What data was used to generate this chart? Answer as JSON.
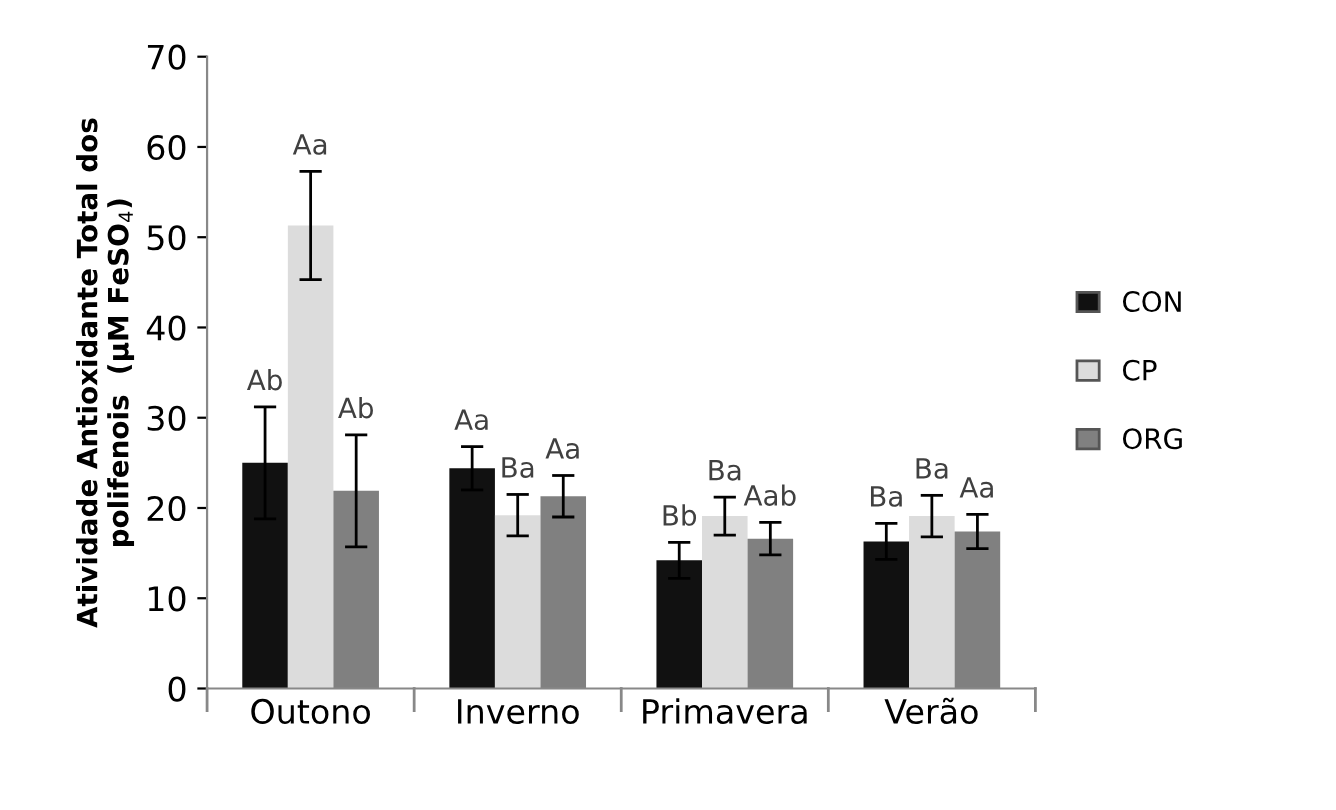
{
  "chart_data": {
    "type": "bar",
    "ylabel": "Atividade Antioxidante Total dos\npolifenois  (µM FeSO$_{4}$)",
    "categories": [
      "Outono",
      "Inverno",
      "Primavera",
      "Verão"
    ],
    "series": [
      {
        "name": "CON",
        "color": "#111111",
        "values": [
          25,
          24.4,
          14.2,
          16.3
        ],
        "errors": [
          6.2,
          2.4,
          2,
          2
        ],
        "value_labels": [
          "Ab",
          "Aa",
          "Bb",
          "Ba"
        ]
      },
      {
        "name": "CP",
        "color": "#dcdcdc",
        "values": [
          51.3,
          19.2,
          19.1,
          19.1
        ],
        "errors": [
          6,
          2.3,
          2.1,
          2.3
        ],
        "value_labels": [
          "Aa",
          "Ba",
          "Ba",
          "Ba"
        ]
      },
      {
        "name": "ORG",
        "color": "#808080",
        "values": [
          21.9,
          21.3,
          16.6,
          17.4
        ],
        "errors": [
          6.2,
          2.3,
          1.8,
          1.9
        ],
        "value_labels": [
          "Ab",
          "Aa",
          "Aab",
          "Aa"
        ]
      }
    ],
    "ylim": [
      0,
      70
    ],
    "yticks": [
      0,
      10,
      20,
      30,
      40,
      50,
      60,
      70
    ],
    "grid": false,
    "legend": "right"
  }
}
